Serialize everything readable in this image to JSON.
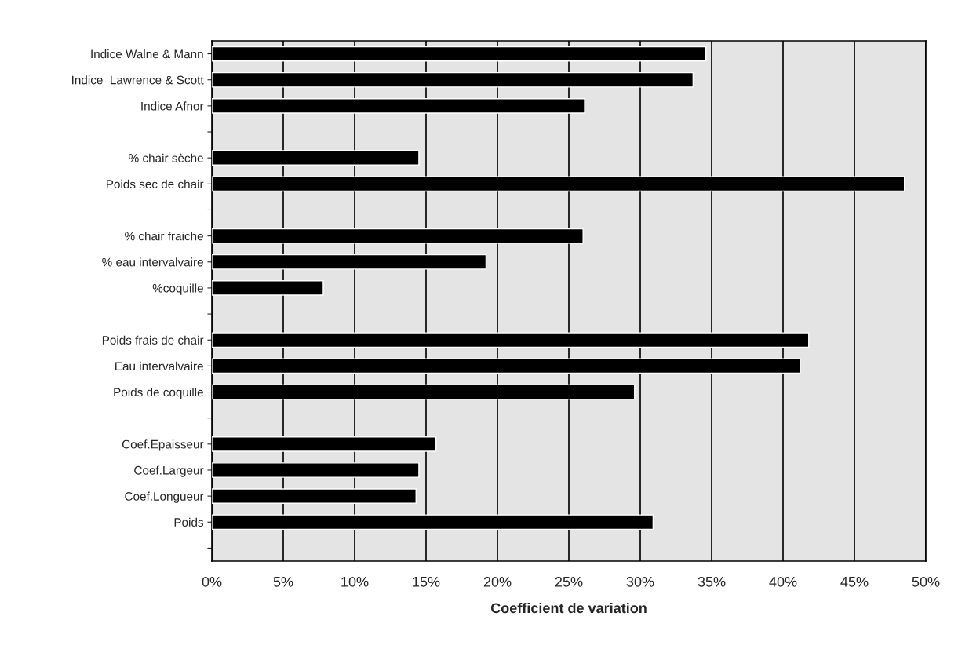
{
  "chart_data": {
    "type": "bar",
    "orientation": "horizontal",
    "xlabel": "Coefficient de variation",
    "categories": [
      "Indice Walne & Mann",
      "Indice  Lawrence & Scott",
      "Indice Afnor",
      null,
      "% chair sèche",
      "Poids sec de chair",
      null,
      "% chair fraiche",
      "% eau intervalvaire",
      "%coquille",
      null,
      "Poids frais de chair",
      "Eau intervalvaire",
      "Poids de coquille",
      null,
      "Coef.Epaisseur",
      "Coef.Largeur",
      "Coef.Longueur",
      "Poids",
      null
    ],
    "values": [
      34.6,
      33.7,
      26.1,
      null,
      14.5,
      48.5,
      null,
      26.0,
      19.2,
      7.8,
      null,
      41.8,
      41.2,
      29.6,
      null,
      15.7,
      14.5,
      14.3,
      30.9,
      null
    ],
    "color": "#000000",
    "xlim": [
      0,
      50
    ],
    "xticks": [
      {
        "value": 0,
        "label": "0%"
      },
      {
        "value": 5,
        "label": "5%"
      },
      {
        "value": 10,
        "label": "10%"
      },
      {
        "value": 15,
        "label": "15%"
      },
      {
        "value": 20,
        "label": "20%"
      },
      {
        "value": 25,
        "label": "25%"
      },
      {
        "value": 30,
        "label": "30%"
      },
      {
        "value": 35,
        "label": "35%"
      },
      {
        "value": 40,
        "label": "40%"
      },
      {
        "value": 45,
        "label": "45%"
      },
      {
        "value": 50,
        "label": "50%"
      }
    ],
    "grid": "x"
  }
}
